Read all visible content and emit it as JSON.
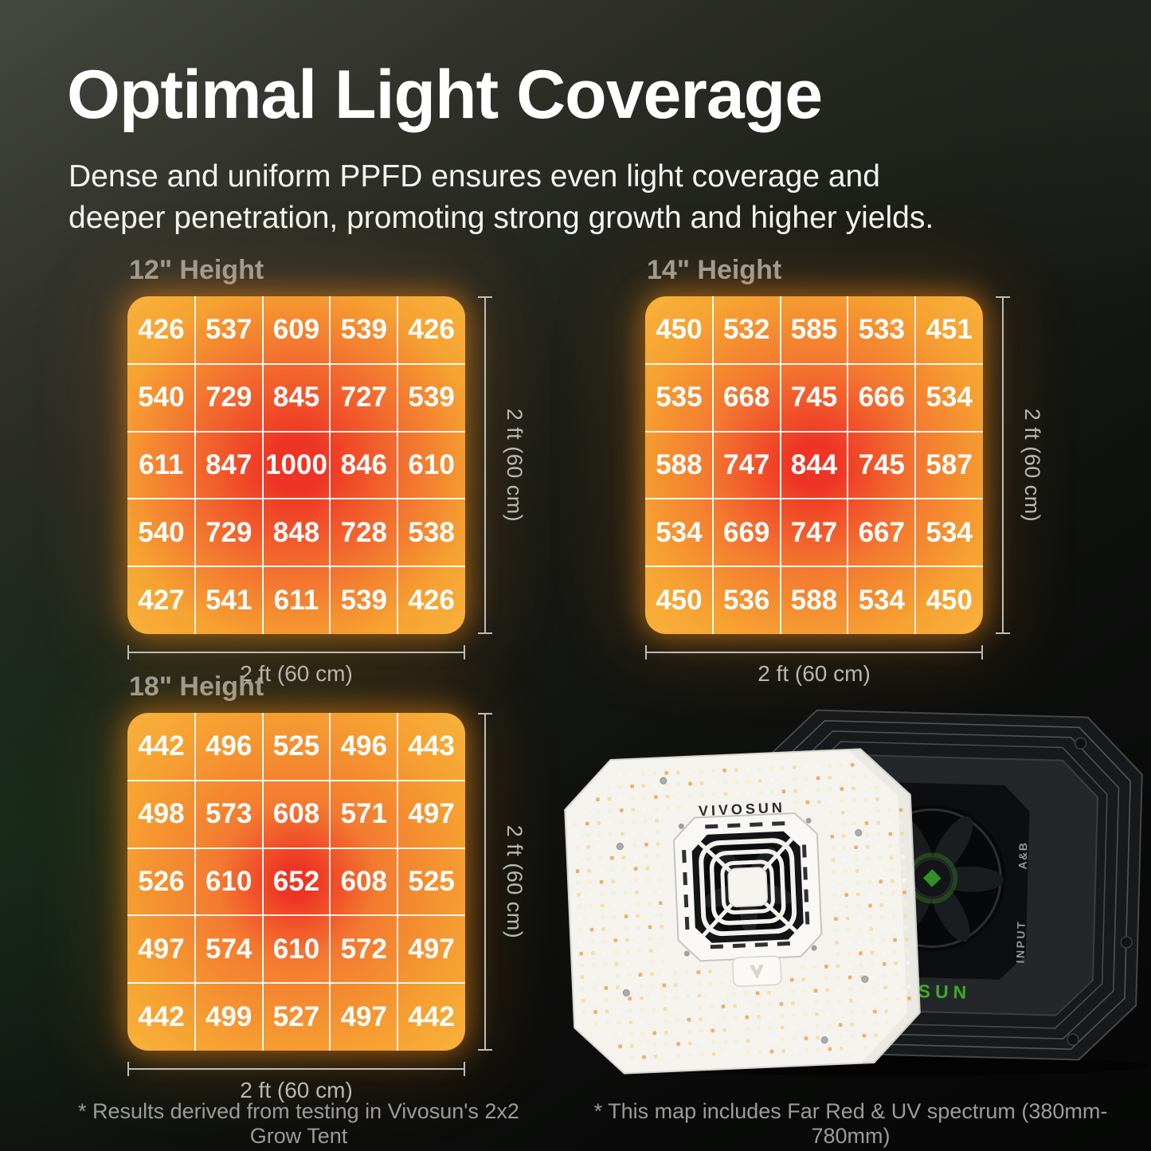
{
  "page": {
    "title": "Optimal Light Coverage",
    "subtitle": "Dense and uniform PPFD ensures even light coverage and\ndeeper penetration, promoting strong growth and higher yields."
  },
  "footnotes": {
    "left": "* Results derived from testing in Vivosun's 2x2 Grow Tent",
    "right": "* This map includes Far Red & UV spectrum (380mm-780mm)"
  },
  "product": {
    "brand": "VIVOSUN",
    "back_brand": "VIVOSUN",
    "input_label": "INPUT",
    "ab_label": "A&B"
  },
  "colors": {
    "heat_center": "#ee3424",
    "heat_red2": "#f1542a",
    "heat_mid": "#f37a30",
    "heat_edge": "#f6a231",
    "heat_corner": "#f8b23c",
    "grid_line": "#ffffff",
    "glow": "#f4921e",
    "label_gray": "#b7b8b4",
    "heading_gray": "#9c9e9a",
    "footnote_gray": "#9b9c98",
    "brand_green": "#3cab29"
  },
  "chart_data": [
    {
      "type": "heatmap",
      "title": "12\" Height",
      "x_label": "2 ft (60 cm)",
      "y_label": "2 ft (60 cm)",
      "rows": 5,
      "cols": 5,
      "values": [
        [
          426,
          537,
          609,
          539,
          426
        ],
        [
          540,
          729,
          845,
          727,
          539
        ],
        [
          611,
          847,
          1000,
          846,
          610
        ],
        [
          540,
          729,
          848,
          728,
          538
        ],
        [
          427,
          541,
          611,
          539,
          426
        ]
      ],
      "value_range": [
        426,
        1000
      ],
      "heat_spread": 1.15,
      "legend": "none",
      "grid": "white 5x5 overlay"
    },
    {
      "type": "heatmap",
      "title": "14\" Height",
      "x_label": "2 ft (60 cm)",
      "y_label": "2 ft (60 cm)",
      "rows": 5,
      "cols": 5,
      "values": [
        [
          450,
          532,
          585,
          533,
          451
        ],
        [
          535,
          668,
          745,
          666,
          534
        ],
        [
          588,
          747,
          844,
          745,
          587
        ],
        [
          534,
          669,
          747,
          667,
          534
        ],
        [
          450,
          536,
          588,
          534,
          450
        ]
      ],
      "value_range": [
        450,
        844
      ],
      "heat_spread": 1.0,
      "legend": "none",
      "grid": "white 5x5 overlay"
    },
    {
      "type": "heatmap",
      "title": "18\" Height",
      "x_label": "2 ft (60 cm)",
      "y_label": "2 ft (60 cm)",
      "rows": 5,
      "cols": 5,
      "values": [
        [
          442,
          496,
          525,
          496,
          443
        ],
        [
          498,
          573,
          608,
          571,
          497
        ],
        [
          526,
          610,
          652,
          608,
          525
        ],
        [
          497,
          574,
          610,
          572,
          497
        ],
        [
          442,
          499,
          527,
          497,
          442
        ]
      ],
      "value_range": [
        442,
        652
      ],
      "heat_spread": 0.74,
      "legend": "none",
      "grid": "white 5x5 overlay"
    }
  ]
}
